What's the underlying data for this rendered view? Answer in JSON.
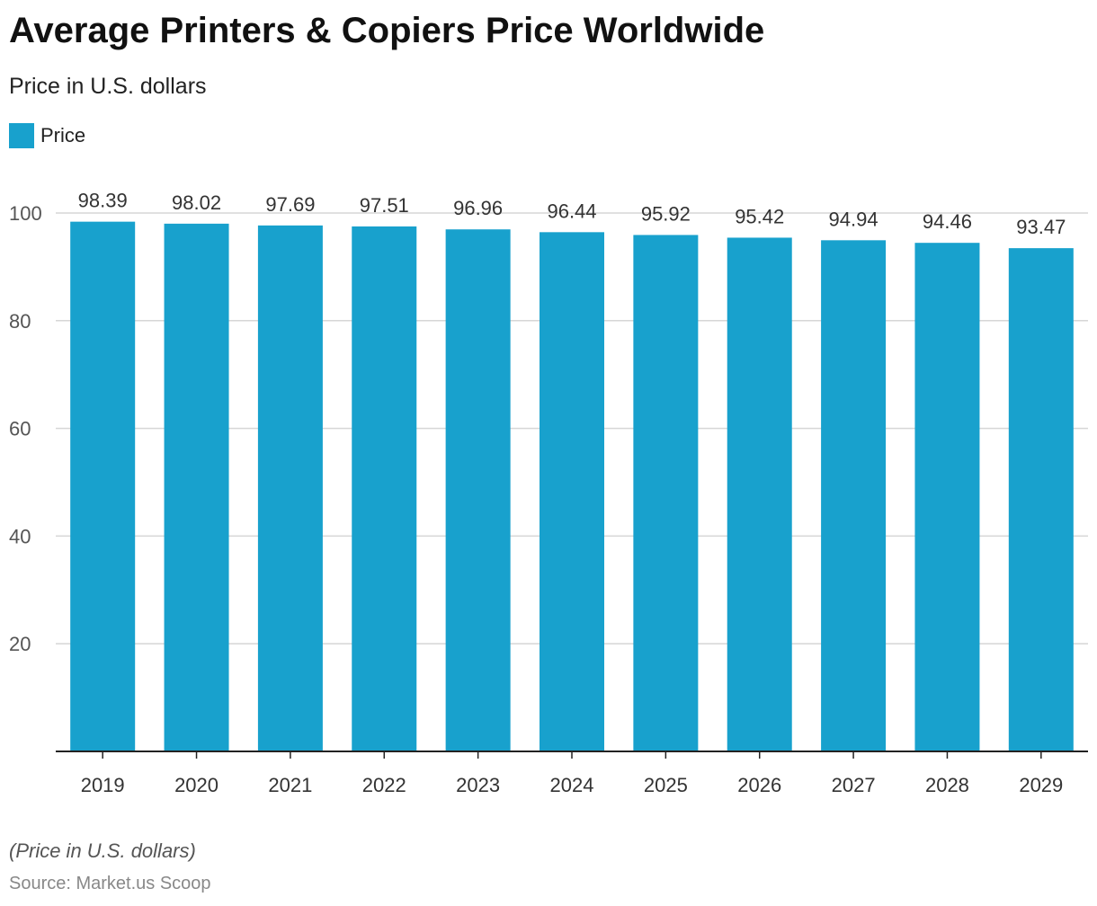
{
  "title": "Average Printers & Copiers Price Worldwide",
  "subtitle": "Price in U.S. dollars",
  "footnote": "(Price in U.S. dollars)",
  "source": "Source: Market.us Scoop",
  "colors": {
    "bar": "#18a1cd",
    "grid": "#d6d6d6",
    "axis": "#222222"
  },
  "chart_data": {
    "type": "bar",
    "title": "Average Printers & Copiers Price Worldwide",
    "subtitle": "Price in U.S. dollars",
    "xlabel": "",
    "ylabel": "",
    "categories": [
      "2019",
      "2020",
      "2021",
      "2022",
      "2023",
      "2024",
      "2025",
      "2026",
      "2027",
      "2028",
      "2029"
    ],
    "series": [
      {
        "name": "Price",
        "values": [
          98.39,
          98.02,
          97.69,
          97.51,
          96.96,
          96.44,
          95.92,
          95.42,
          94.94,
          94.46,
          93.47
        ]
      }
    ],
    "value_labels": [
      "98.39",
      "98.02",
      "97.69",
      "97.51",
      "96.96",
      "96.44",
      "95.92",
      "95.42",
      "94.94",
      "94.46",
      "93.47"
    ],
    "ylim": [
      0,
      100
    ],
    "yticks": [
      20,
      40,
      60,
      80,
      100
    ],
    "ytick_labels": [
      "20",
      "40",
      "60",
      "80",
      "100"
    ],
    "grid": true,
    "legend": "top-left"
  }
}
